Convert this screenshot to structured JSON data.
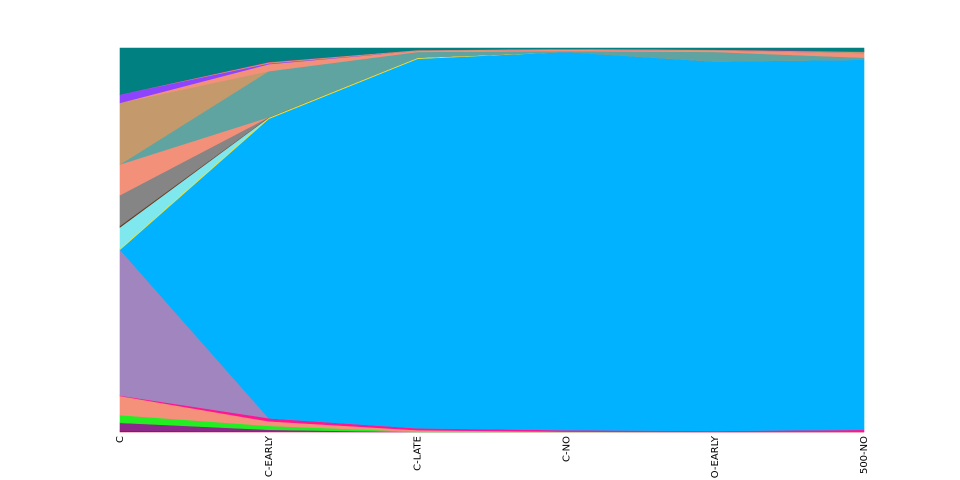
{
  "chart_data": {
    "type": "area",
    "stacked": true,
    "normalized": true,
    "ylim": [
      0,
      1
    ],
    "grid": false,
    "legend": "none",
    "categories": [
      "C",
      "C-EARLY",
      "C-LATE",
      "C-NO",
      "O-EARLY",
      "500-NO"
    ],
    "series": [
      {
        "color": "#cc0033",
        "values": [
          0.004,
          0.001,
          0.0,
          0.0,
          0.0,
          0.0
        ]
      },
      {
        "color": "#8b2a8b",
        "values": [
          0.02,
          0.005,
          0.0,
          0.0,
          0.0,
          0.0
        ]
      },
      {
        "color": "#22ee22",
        "values": [
          0.02,
          0.01,
          0.001,
          0.0,
          0.0,
          0.0
        ]
      },
      {
        "color": "#f5907a",
        "values": [
          0.05,
          0.012,
          0.004,
          0.001,
          0.0,
          0.0
        ]
      },
      {
        "color": "#ff1493",
        "values": [
          0.001,
          0.008,
          0.005,
          0.004,
          0.003,
          0.006
        ]
      },
      {
        "color": "#a085be",
        "values": [
          0.38,
          0.0,
          0.0,
          0.0,
          0.0,
          0.0
        ]
      },
      {
        "color": "#00b2ff",
        "values": [
          0.0,
          0.78,
          0.962,
          0.985,
          0.962,
          0.964
        ]
      },
      {
        "color": "#f0e030",
        "values": [
          0.003,
          0.003,
          0.003,
          0.0,
          0.0,
          0.0
        ]
      },
      {
        "color": "#7fe8ef",
        "values": [
          0.055,
          0.0,
          0.0,
          0.0,
          0.0,
          0.0
        ]
      },
      {
        "color": "#6b3a1f",
        "values": [
          0.004,
          0.001,
          0.0,
          0.0,
          0.0,
          0.0
        ]
      },
      {
        "color": "#858585",
        "values": [
          0.08,
          0.0,
          0.0,
          0.0,
          0.0,
          0.0
        ]
      },
      {
        "color": "#f3907a",
        "values": [
          0.08,
          0.0,
          0.0,
          0.0,
          0.0,
          0.0
        ]
      },
      {
        "color": "#5fa4a0",
        "values": [
          0.0,
          0.12,
          0.015,
          0.002,
          0.025,
          0.005
        ]
      },
      {
        "color": "#c49a6c",
        "values": [
          0.16,
          0.0,
          0.0,
          0.0,
          0.0,
          0.0
        ]
      },
      {
        "color": "#f3907a",
        "values": [
          0.0,
          0.018,
          0.003,
          0.004,
          0.004,
          0.012
        ]
      },
      {
        "color": "#8e44ff",
        "values": [
          0.022,
          0.002,
          0.0,
          0.0,
          0.0,
          0.0
        ]
      },
      {
        "color": "#c49a6c",
        "values": [
          0.0,
          0.003,
          0.002,
          0.002,
          0.002,
          0.003
        ]
      },
      {
        "color": "#ff1493",
        "values": [
          0.0,
          0.001,
          0.0,
          0.0,
          0.0,
          0.002
        ]
      },
      {
        "color": "#008080",
        "values": [
          0.121,
          0.036,
          0.005,
          0.002,
          0.004,
          0.008
        ]
      }
    ]
  }
}
